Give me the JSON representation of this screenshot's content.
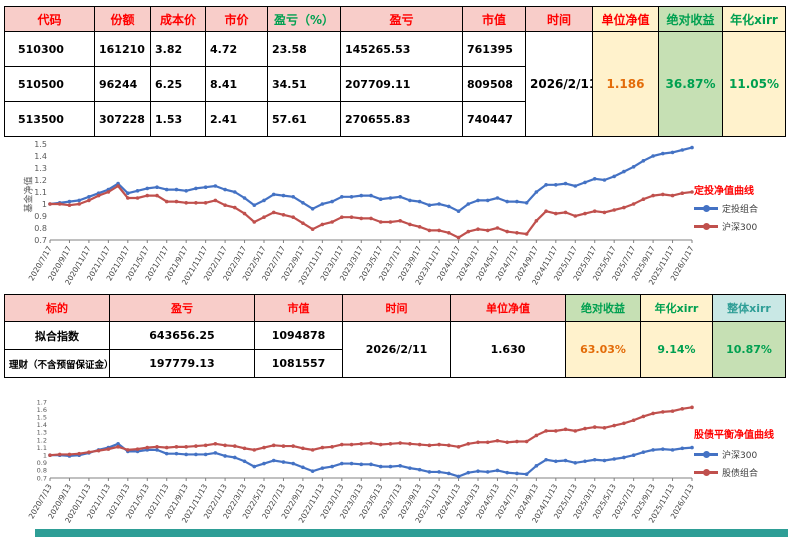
{
  "colors": {
    "header_pink": "#F8CDC9",
    "red_text": "#FF0000",
    "green_bg": "#C6E0B4",
    "green_text": "#00A050",
    "yellow_bg": "#FFF2CC",
    "orange_text": "#E36C09",
    "teal_bg": "#C9E8E5",
    "teal_text": "#2E9E96",
    "series_blue": "#4472C4",
    "series_red": "#C0504D",
    "bottom_strip": "#2E9E96"
  },
  "table1": {
    "headers": [
      "代码",
      "份额",
      "成本价",
      "市价",
      "盈亏（%）",
      "盈亏",
      "市值",
      "时间",
      "单位净值",
      "绝对收益",
      "年化xirr"
    ],
    "rows": [
      [
        "510300",
        "161210",
        "3.82",
        "4.72",
        "23.58",
        "145265.53",
        "761395"
      ],
      [
        "510500",
        "96244",
        "6.25",
        "8.41",
        "34.51",
        "207709.11",
        "809508"
      ],
      [
        "513500",
        "307228",
        "1.53",
        "2.41",
        "57.61",
        "270655.83",
        "740447"
      ]
    ],
    "merged": {
      "time": "2026/2/11",
      "nav": "1.186",
      "abs_return": "36.87%",
      "xirr": "11.05%"
    }
  },
  "table2": {
    "headers": [
      "标的",
      "盈亏",
      "市值",
      "时间",
      "单位净值",
      "绝对收益",
      "年化xirr",
      "整体xirr"
    ],
    "rows": [
      [
        "拟合指数",
        "643656.25",
        "1094878"
      ],
      [
        "理财（不含预留保证金）",
        "197779.13",
        "1081557"
      ]
    ],
    "merged": {
      "time": "2026/2/11",
      "nav": "1.630",
      "abs_return": "63.03%",
      "xirr": "9.14%",
      "overall_xirr": "10.87%"
    }
  },
  "charts": [
    {
      "type": "line",
      "title": "定投净值曲线",
      "ylabel": "基金净值",
      "ylim": [
        0.7,
        1.5
      ],
      "ystep": 0.1,
      "legend_position": "right",
      "grid": false,
      "x_labels": [
        "2020/7/17",
        "2020/9/17",
        "2020/11/17",
        "2021/1/17",
        "2021/3/17",
        "2021/5/17",
        "2021/7/17",
        "2021/9/17",
        "2021/11/17",
        "2022/1/17",
        "2022/3/17",
        "2022/5/17",
        "2022/7/17",
        "2022/9/17",
        "2022/11/17",
        "2023/1/17",
        "2023/3/17",
        "2023/5/17",
        "2023/7/17",
        "2023/9/17",
        "2023/11/17",
        "2024/1/17",
        "2024/3/17",
        "2024/5/17",
        "2024/7/17",
        "2024/9/17",
        "2024/11/17",
        "2025/1/17",
        "2025/3/17",
        "2025/5/17",
        "2025/7/17",
        "2025/9/17",
        "2025/11/17",
        "2026/1/17"
      ],
      "series": [
        {
          "name": "定投组合",
          "color": "#4472C4",
          "values": [
            1.0,
            1.01,
            1.02,
            1.03,
            1.06,
            1.09,
            1.12,
            1.17,
            1.09,
            1.11,
            1.13,
            1.14,
            1.12,
            1.12,
            1.11,
            1.13,
            1.14,
            1.15,
            1.12,
            1.1,
            1.05,
            0.99,
            1.03,
            1.08,
            1.07,
            1.06,
            1.01,
            0.96,
            1.0,
            1.02,
            1.06,
            1.06,
            1.07,
            1.07,
            1.04,
            1.05,
            1.06,
            1.03,
            1.02,
            0.99,
            1.0,
            0.98,
            0.94,
            1.0,
            1.03,
            1.03,
            1.05,
            1.02,
            1.02,
            1.01,
            1.1,
            1.16,
            1.16,
            1.17,
            1.15,
            1.18,
            1.21,
            1.2,
            1.23,
            1.27,
            1.31,
            1.36,
            1.4,
            1.42,
            1.43,
            1.45,
            1.47
          ]
        },
        {
          "name": "沪深300",
          "color": "#C0504D",
          "values": [
            1.0,
            1.0,
            0.99,
            1.0,
            1.03,
            1.07,
            1.1,
            1.15,
            1.05,
            1.05,
            1.07,
            1.07,
            1.02,
            1.02,
            1.01,
            1.01,
            1.01,
            1.03,
            0.99,
            0.97,
            0.92,
            0.85,
            0.89,
            0.93,
            0.91,
            0.89,
            0.84,
            0.79,
            0.83,
            0.85,
            0.89,
            0.89,
            0.88,
            0.88,
            0.85,
            0.85,
            0.86,
            0.83,
            0.81,
            0.78,
            0.78,
            0.76,
            0.72,
            0.77,
            0.79,
            0.78,
            0.8,
            0.77,
            0.76,
            0.75,
            0.86,
            0.94,
            0.92,
            0.93,
            0.9,
            0.92,
            0.94,
            0.93,
            0.95,
            0.97,
            1.0,
            1.04,
            1.07,
            1.08,
            1.07,
            1.09,
            1.1
          ]
        }
      ]
    },
    {
      "type": "line",
      "title": "股债平衡净值曲线",
      "ylabel": "",
      "ylim": [
        0.7,
        1.7
      ],
      "ystep": 0.1,
      "legend_position": "right",
      "grid": false,
      "x_labels": [
        "2020/7/13",
        "2020/9/13",
        "2020/11/13",
        "2021/1/13",
        "2021/3/13",
        "2021/5/13",
        "2021/7/13",
        "2021/9/13",
        "2021/11/13",
        "2022/1/13",
        "2022/3/13",
        "2022/5/13",
        "2022/7/13",
        "2022/9/13",
        "2022/11/13",
        "2023/1/13",
        "2023/3/13",
        "2023/5/13",
        "2023/7/13",
        "2023/9/13",
        "2023/11/13",
        "2024/1/13",
        "2024/3/13",
        "2024/5/13",
        "2024/7/13",
        "2024/9/13",
        "2024/11/13",
        "2025/1/13",
        "2025/3/13",
        "2025/5/13",
        "2025/7/13",
        "2025/9/13",
        "2025/11/13",
        "2026/1/13"
      ],
      "series": [
        {
          "name": "沪深300",
          "color": "#4472C4",
          "values": [
            1.0,
            1.0,
            0.99,
            1.0,
            1.03,
            1.07,
            1.1,
            1.15,
            1.05,
            1.05,
            1.07,
            1.07,
            1.02,
            1.02,
            1.01,
            1.01,
            1.01,
            1.03,
            0.99,
            0.97,
            0.92,
            0.85,
            0.89,
            0.93,
            0.91,
            0.89,
            0.84,
            0.79,
            0.83,
            0.85,
            0.89,
            0.89,
            0.88,
            0.88,
            0.85,
            0.85,
            0.86,
            0.83,
            0.81,
            0.78,
            0.78,
            0.76,
            0.72,
            0.77,
            0.79,
            0.78,
            0.8,
            0.77,
            0.76,
            0.75,
            0.86,
            0.94,
            0.92,
            0.93,
            0.9,
            0.92,
            0.94,
            0.93,
            0.95,
            0.97,
            1.0,
            1.04,
            1.07,
            1.08,
            1.07,
            1.09,
            1.1
          ]
        },
        {
          "name": "股债组合",
          "color": "#C0504D",
          "values": [
            1.0,
            1.01,
            1.01,
            1.02,
            1.04,
            1.06,
            1.08,
            1.11,
            1.07,
            1.08,
            1.1,
            1.11,
            1.1,
            1.11,
            1.11,
            1.12,
            1.13,
            1.15,
            1.13,
            1.12,
            1.09,
            1.07,
            1.1,
            1.13,
            1.12,
            1.12,
            1.09,
            1.07,
            1.1,
            1.11,
            1.14,
            1.14,
            1.15,
            1.16,
            1.14,
            1.15,
            1.16,
            1.15,
            1.14,
            1.13,
            1.14,
            1.13,
            1.11,
            1.15,
            1.17,
            1.17,
            1.19,
            1.17,
            1.18,
            1.18,
            1.26,
            1.32,
            1.32,
            1.34,
            1.32,
            1.35,
            1.37,
            1.36,
            1.39,
            1.42,
            1.46,
            1.51,
            1.55,
            1.57,
            1.58,
            1.61,
            1.63
          ]
        }
      ]
    }
  ]
}
